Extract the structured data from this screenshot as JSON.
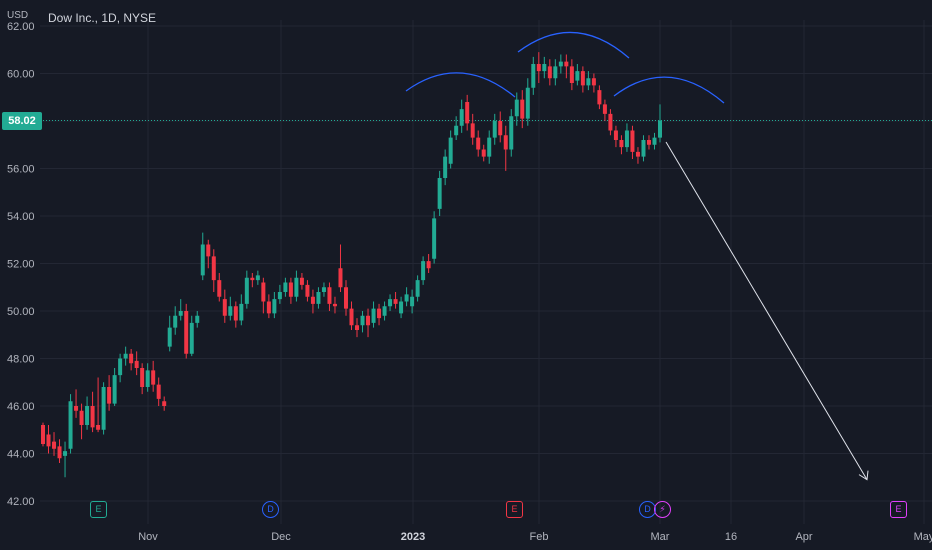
{
  "symbol": {
    "name": "Dow Inc., 1D, NYSE"
  },
  "price_axis": {
    "currency": "USD",
    "last_price_label": "58.02"
  },
  "events": [
    {
      "label": "E",
      "kind": "earnings",
      "color": "#22ab94"
    },
    {
      "label": "D",
      "kind": "dividend",
      "color": "#2962ff"
    },
    {
      "label": "E",
      "kind": "earnings",
      "color": "#f23645"
    },
    {
      "label": "D",
      "kind": "dividend",
      "color": "#2962ff"
    },
    {
      "label": "⚡",
      "kind": "split-or-news",
      "color": "#e040fb"
    },
    {
      "label": "E",
      "kind": "earnings",
      "color": "#e040fb"
    }
  ],
  "colors": {
    "up": "#22ab94",
    "down": "#f23645",
    "grid": "#232734",
    "annotation_arc": "#2962ff",
    "projection_arrow": "#e0e3eb"
  },
  "chart_data": {
    "type": "candlestick",
    "title": "Dow Inc., 1D, NYSE",
    "y_axis": {
      "min": 42,
      "max": 62,
      "ticks": [
        "62.00",
        "60.00",
        "58.00",
        "56.00",
        "54.00",
        "52.00",
        "50.00",
        "48.00",
        "46.00",
        "44.00",
        "42.00"
      ]
    },
    "x_axis": {
      "labels": [
        "Nov",
        "Dec",
        "2023",
        "Feb",
        "Mar",
        "16",
        "Apr",
        "May"
      ]
    },
    "last_price": 58.02,
    "candles": [
      [
        45.2,
        44.4,
        45.3,
        44.3
      ],
      [
        44.8,
        44.3,
        45.2,
        44.0
      ],
      [
        44.5,
        44.2,
        44.9,
        43.9
      ],
      [
        44.3,
        43.8,
        44.6,
        43.6
      ],
      [
        43.9,
        44.1,
        44.5,
        43.0
      ],
      [
        44.2,
        46.2,
        46.5,
        44.0
      ],
      [
        46.0,
        45.8,
        46.7,
        45.5
      ],
      [
        45.8,
        45.2,
        46.1,
        44.6
      ],
      [
        45.2,
        46.0,
        46.4,
        45.0
      ],
      [
        46.0,
        45.1,
        46.6,
        44.9
      ],
      [
        45.2,
        45.0,
        47.2,
        44.9
      ],
      [
        45.0,
        46.8,
        47.0,
        44.8
      ],
      [
        46.8,
        46.1,
        47.3,
        45.8
      ],
      [
        46.1,
        47.3,
        47.6,
        46.0
      ],
      [
        47.3,
        48.0,
        48.2,
        47.0
      ],
      [
        48.0,
        48.2,
        48.5,
        47.7
      ],
      [
        48.2,
        47.8,
        48.4,
        47.5
      ],
      [
        47.9,
        47.6,
        48.3,
        47.3
      ],
      [
        47.6,
        46.8,
        47.8,
        46.5
      ],
      [
        46.8,
        47.5,
        47.8,
        46.6
      ],
      [
        47.5,
        46.9,
        47.9,
        46.6
      ],
      [
        46.9,
        46.3,
        47.2,
        46.0
      ],
      [
        46.2,
        46.0,
        46.4,
        45.8
      ],
      [
        48.5,
        49.3,
        49.8,
        48.3
      ],
      [
        49.3,
        49.8,
        50.2,
        49.0
      ],
      [
        49.8,
        50.0,
        50.5,
        49.6
      ],
      [
        50.0,
        48.2,
        50.3,
        48.0
      ],
      [
        48.2,
        49.5,
        49.8,
        48.1
      ],
      [
        49.5,
        49.8,
        50.0,
        49.3
      ],
      [
        51.5,
        52.8,
        53.3,
        51.3
      ],
      [
        52.8,
        52.3,
        53.0,
        51.8
      ],
      [
        52.3,
        51.3,
        52.6,
        50.8
      ],
      [
        51.3,
        50.6,
        51.6,
        50.4
      ],
      [
        50.5,
        49.8,
        50.9,
        49.5
      ],
      [
        49.8,
        50.2,
        50.6,
        49.6
      ],
      [
        50.2,
        49.6,
        50.4,
        49.3
      ],
      [
        49.6,
        50.3,
        50.7,
        49.4
      ],
      [
        50.3,
        51.4,
        51.7,
        50.1
      ],
      [
        51.4,
        51.3,
        51.6,
        51.0
      ],
      [
        51.3,
        51.5,
        51.7,
        51.1
      ],
      [
        51.2,
        50.4,
        51.4,
        49.9
      ],
      [
        50.4,
        49.9,
        50.7,
        49.7
      ],
      [
        49.9,
        50.5,
        50.8,
        49.7
      ],
      [
        50.5,
        50.8,
        51.1,
        50.3
      ],
      [
        50.8,
        51.2,
        51.4,
        50.6
      ],
      [
        51.2,
        50.6,
        51.4,
        50.3
      ],
      [
        50.6,
        51.4,
        51.7,
        50.4
      ],
      [
        51.4,
        51.1,
        51.6,
        50.9
      ],
      [
        51.1,
        50.6,
        51.3,
        50.4
      ],
      [
        50.6,
        50.3,
        50.9,
        49.9
      ],
      [
        50.3,
        50.8,
        51.0,
        50.1
      ],
      [
        50.8,
        51.0,
        51.2,
        50.6
      ],
      [
        51.0,
        50.3,
        51.2,
        50.0
      ],
      [
        50.3,
        50.2,
        50.6,
        49.9
      ],
      [
        51.8,
        51.0,
        52.8,
        50.8
      ],
      [
        51.0,
        50.1,
        51.3,
        49.8
      ],
      [
        50.1,
        49.4,
        50.4,
        49.2
      ],
      [
        49.4,
        49.2,
        49.7,
        48.9
      ],
      [
        49.4,
        49.8,
        50.0,
        49.1
      ],
      [
        49.8,
        49.4,
        50.1,
        48.9
      ],
      [
        49.5,
        50.1,
        50.4,
        49.3
      ],
      [
        50.1,
        49.7,
        50.3,
        49.4
      ],
      [
        49.8,
        50.2,
        50.4,
        49.6
      ],
      [
        50.2,
        50.5,
        50.7,
        50.0
      ],
      [
        50.5,
        50.3,
        50.8,
        50.1
      ],
      [
        49.9,
        50.4,
        50.6,
        49.7
      ],
      [
        50.4,
        50.7,
        51.0,
        50.2
      ],
      [
        50.2,
        50.6,
        50.9,
        49.9
      ],
      [
        50.6,
        51.3,
        51.5,
        50.4
      ],
      [
        51.3,
        52.1,
        52.3,
        51.1
      ],
      [
        52.1,
        51.8,
        52.4,
        51.6
      ],
      [
        52.2,
        53.9,
        54.2,
        52.0
      ],
      [
        54.3,
        55.6,
        55.9,
        54.0
      ],
      [
        55.6,
        56.5,
        56.8,
        55.3
      ],
      [
        56.2,
        57.3,
        57.6,
        56.0
      ],
      [
        57.4,
        57.8,
        58.2,
        57.2
      ],
      [
        57.8,
        58.5,
        58.9,
        57.5
      ],
      [
        58.8,
        57.9,
        59.1,
        57.6
      ],
      [
        57.9,
        57.3,
        58.3,
        57.0
      ],
      [
        57.3,
        56.8,
        57.6,
        56.5
      ],
      [
        56.8,
        56.5,
        57.0,
        56.3
      ],
      [
        56.5,
        57.3,
        57.6,
        56.2
      ],
      [
        57.3,
        58.0,
        58.3,
        57.0
      ],
      [
        58.0,
        57.4,
        58.4,
        57.1
      ],
      [
        57.4,
        56.8,
        57.8,
        55.9
      ],
      [
        56.8,
        58.2,
        58.5,
        56.5
      ],
      [
        58.2,
        58.9,
        59.2,
        57.8
      ],
      [
        58.9,
        58.1,
        59.3,
        57.7
      ],
      [
        58.1,
        59.4,
        59.8,
        57.8
      ],
      [
        59.4,
        60.4,
        60.7,
        59.1
      ],
      [
        60.4,
        60.1,
        60.9,
        59.6
      ],
      [
        60.1,
        60.4,
        60.7,
        59.8
      ],
      [
        60.3,
        59.8,
        60.6,
        59.5
      ],
      [
        59.8,
        60.3,
        60.6,
        59.5
      ],
      [
        60.3,
        60.5,
        60.8,
        60.0
      ],
      [
        60.5,
        60.3,
        60.8,
        59.8
      ],
      [
        60.3,
        59.6,
        60.6,
        59.3
      ],
      [
        59.7,
        60.1,
        60.4,
        59.5
      ],
      [
        60.1,
        59.5,
        60.3,
        59.2
      ],
      [
        59.5,
        59.8,
        60.1,
        59.3
      ],
      [
        59.8,
        59.5,
        60.0,
        59.2
      ],
      [
        59.3,
        58.7,
        59.5,
        58.5
      ],
      [
        58.7,
        58.3,
        58.9,
        58.0
      ],
      [
        58.3,
        57.6,
        58.5,
        57.4
      ],
      [
        57.6,
        57.2,
        57.8,
        56.9
      ],
      [
        57.2,
        56.9,
        57.4,
        56.6
      ],
      [
        56.9,
        57.6,
        57.9,
        56.7
      ],
      [
        57.6,
        56.7,
        57.8,
        56.4
      ],
      [
        56.7,
        56.5,
        56.9,
        56.2
      ],
      [
        56.5,
        57.2,
        57.4,
        56.3
      ],
      [
        57.2,
        57.0,
        57.4,
        56.8
      ],
      [
        57.0,
        57.3,
        57.5,
        56.8
      ],
      [
        57.3,
        58.02,
        58.7,
        57.1
      ]
    ],
    "annotations": {
      "head_and_shoulders_arcs": 3,
      "projection_arrow_target_price": 42.9
    }
  }
}
